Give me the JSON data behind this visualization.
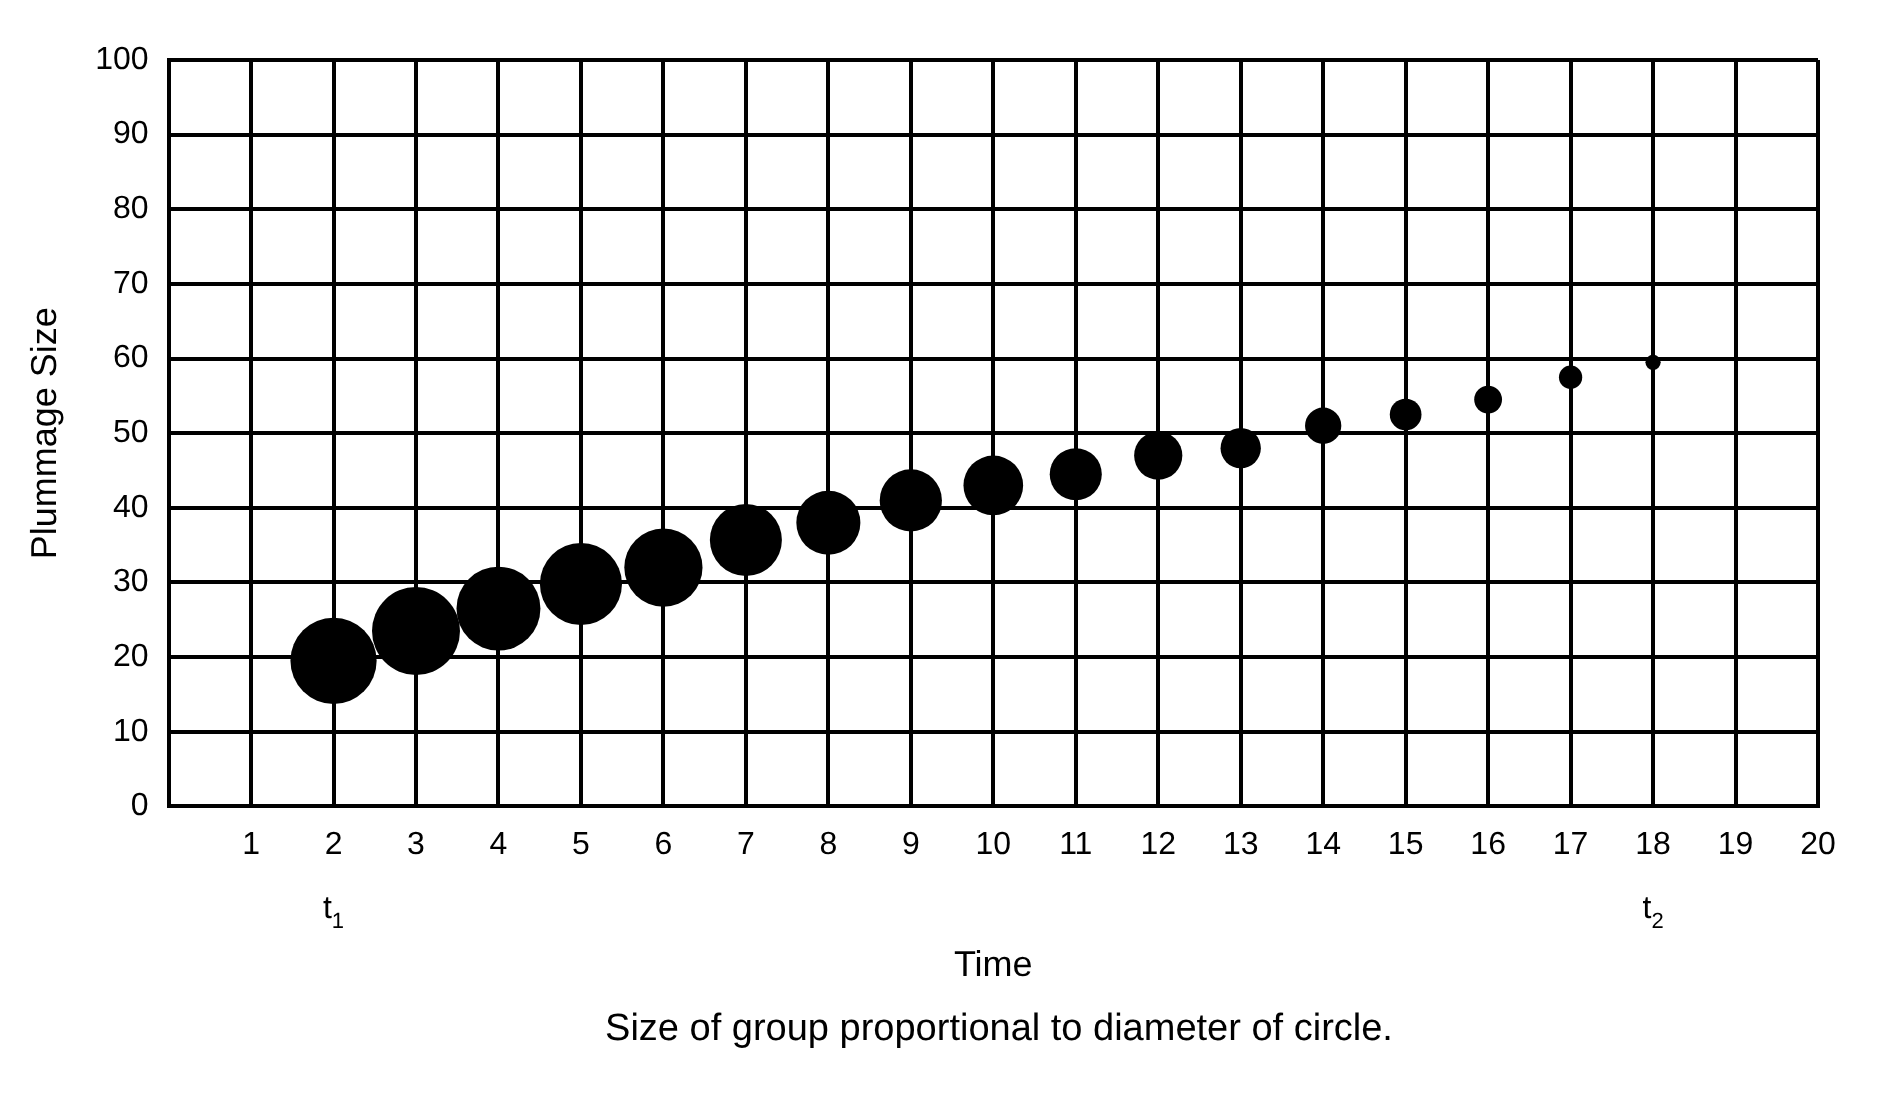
{
  "chart_data": {
    "type": "bubble",
    "xlabel": "Time",
    "ylabel": "Plummage Size",
    "x": [
      2,
      3,
      4,
      5,
      6,
      7,
      8,
      9,
      10,
      11,
      12,
      13,
      14,
      15,
      16,
      17,
      18
    ],
    "values": [
      19.5,
      23.5,
      26.5,
      29.8,
      32,
      35.7,
      38,
      41,
      43,
      44.5,
      47,
      48,
      51,
      52.5,
      54.5,
      57.5,
      59.5
    ],
    "sizes": [
      0.96,
      1,
      0.91,
      0.87,
      0.79,
      0.67,
      0.53,
      0.5,
      0.46,
      0.35,
      0.3,
      0.21,
      0.17,
      0.13,
      0.1,
      0.07,
      0.03
    ],
    "color": "#000000",
    "xlim": [
      0,
      20
    ],
    "xticks": [
      1,
      2,
      3,
      4,
      5,
      6,
      7,
      8,
      9,
      10,
      11,
      12,
      13,
      14,
      15,
      16,
      17,
      18,
      19,
      20
    ],
    "ylim": [
      0,
      100
    ],
    "yticks": [
      0,
      10,
      20,
      30,
      40,
      50,
      60,
      70,
      80,
      90,
      100
    ],
    "grid": true,
    "legend": false,
    "annotations": [
      "t$_{1}$",
      "t$_{2}$",
      "Size of group proportional to diameter of circle."
    ]
  }
}
